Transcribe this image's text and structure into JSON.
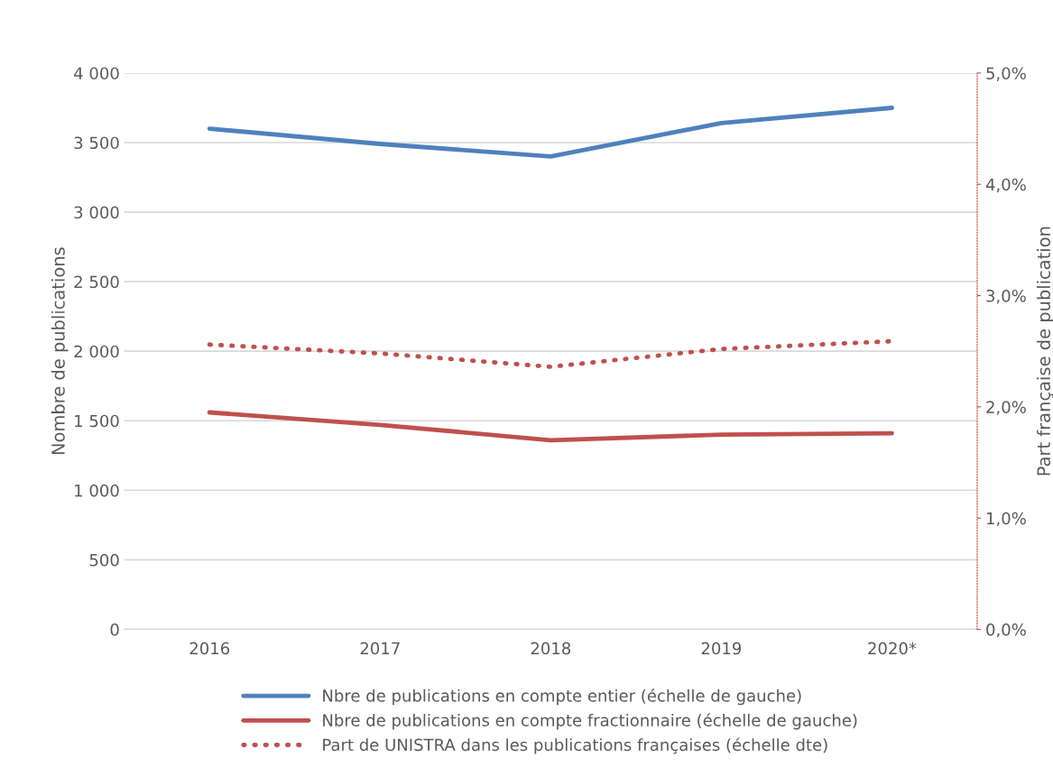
{
  "chart_data": {
    "type": "line",
    "categories": [
      "2016",
      "2017",
      "2018",
      "2019",
      "2020*"
    ],
    "ylabel": "Nombre de publications",
    "y2label": "Part française de publication",
    "ylim": [
      0,
      4000
    ],
    "yticks": [
      0,
      500,
      {
        "value": 1000,
        "label": "1 000"
      },
      {
        "value": 1500,
        "label": "1 500"
      },
      {
        "value": 2000,
        "label": "2 000"
      },
      {
        "value": 2500,
        "label": "2 500"
      },
      {
        "value": 3000,
        "label": "3 000"
      },
      {
        "value": 3500,
        "label": "3 500"
      },
      {
        "value": 4000,
        "label": "4 000"
      }
    ],
    "y2lim": [
      0,
      5
    ],
    "y2ticks": [
      {
        "value": 0,
        "label": "0,0%"
      },
      {
        "value": 1,
        "label": "1,0%"
      },
      {
        "value": 2,
        "label": "2,0%"
      },
      {
        "value": 3,
        "label": "3,0%"
      },
      {
        "value": 4,
        "label": "4,0%"
      },
      {
        "value": 5,
        "label": "5,0%"
      }
    ],
    "grid": "y",
    "legend": "bottom",
    "series": [
      {
        "name": "Nbre de publications en compte entier (échelle de gauche)",
        "color": "#4f81bd",
        "values": [
          3600,
          3490,
          3400,
          3640,
          3750
        ],
        "line_style": "solid"
      },
      {
        "name": "Nbre de publications en compte fractionnaire (échelle de gauche)",
        "color": "#c0504d",
        "values": [
          1560,
          1470,
          1360,
          1400,
          1410
        ],
        "line_style": "solid"
      },
      {
        "name": "Part de UNISTRA dans les publications françaises (échelle dte)",
        "color": "#c0504d",
        "values": [
          2.56,
          2.48,
          2.36,
          2.52,
          2.59
        ],
        "line_style": "dotted",
        "axis": "y2"
      }
    ]
  }
}
